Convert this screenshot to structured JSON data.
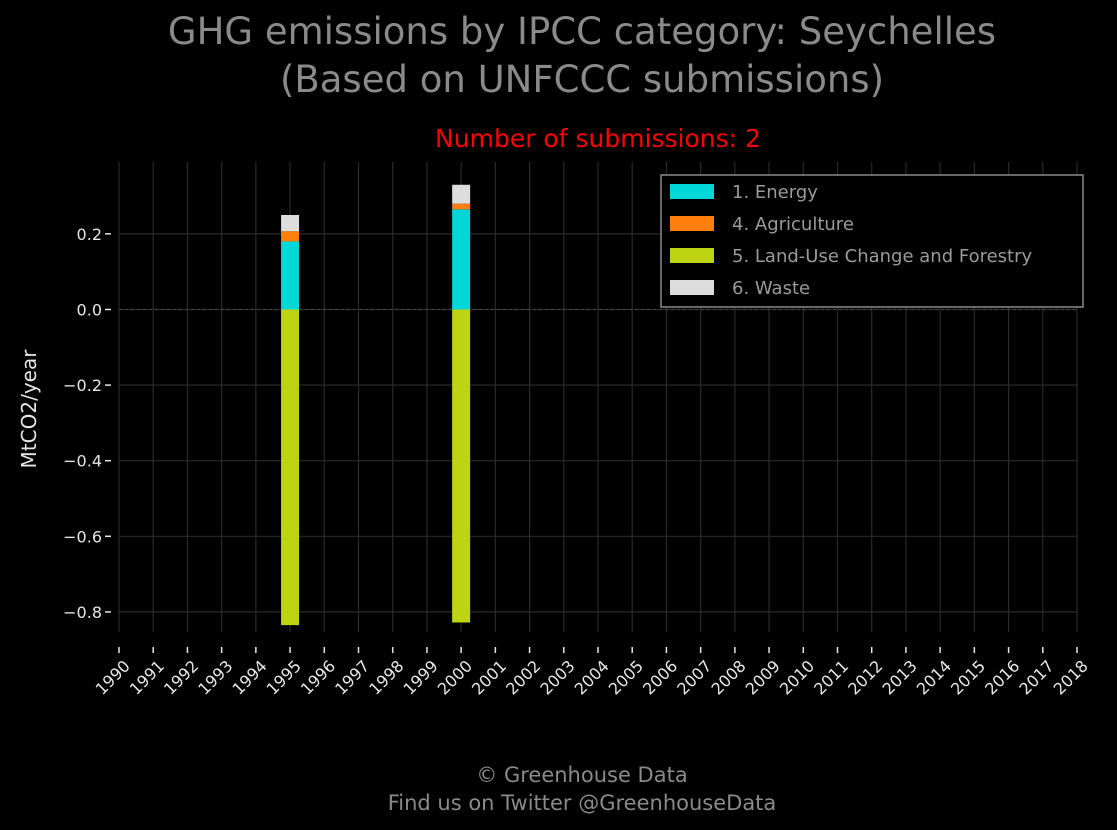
{
  "title_line1": "GHG emissions by IPCC category: Seychelles",
  "title_line2": "(Based on UNFCCC submissions)",
  "subtitle": "Number of submissions: 2",
  "footer_line1": "© Greenhouse Data",
  "footer_line2": "Find us on Twitter @GreenhouseData",
  "colors": {
    "background": "#000000",
    "grid": "#2a2a2a",
    "title": "#8a8a8a",
    "subtitle": "#ff0000",
    "axis_text": "#e6e6e6",
    "footer": "#8a8a8a"
  },
  "chart_data": {
    "type": "bar",
    "stacked": true,
    "ylabel": "MtCO2/year",
    "ylim": [
      -0.9,
      0.37
    ],
    "y_ticks": [
      0.2,
      0.0,
      -0.2,
      -0.4,
      -0.6,
      -0.8
    ],
    "y_tick_labels": [
      "0.2",
      "0.0",
      "−0.2",
      "−0.4",
      "−0.6",
      "−0.8"
    ],
    "grid": true,
    "legend_position": "top-right",
    "categories": [
      "1990",
      "1991",
      "1992",
      "1993",
      "1994",
      "1995",
      "1996",
      "1997",
      "1998",
      "1999",
      "2000",
      "2001",
      "2002",
      "2003",
      "2004",
      "2005",
      "2006",
      "2007",
      "2008",
      "2009",
      "2010",
      "2011",
      "2012",
      "2013",
      "2014",
      "2015",
      "2016",
      "2017",
      "2018"
    ],
    "series": [
      {
        "name": "1. Energy",
        "color": "#00d7d7",
        "values": [
          0,
          0,
          0,
          0,
          0,
          0.18,
          0,
          0,
          0,
          0,
          0.265,
          0,
          0,
          0,
          0,
          0,
          0,
          0,
          0,
          0,
          0,
          0,
          0,
          0,
          0,
          0,
          0,
          0,
          0
        ]
      },
      {
        "name": "4. Agriculture",
        "color": "#ff7f0e",
        "values": [
          0,
          0,
          0,
          0,
          0,
          0.027,
          0,
          0,
          0,
          0,
          0.015,
          0,
          0,
          0,
          0,
          0,
          0,
          0,
          0,
          0,
          0,
          0,
          0,
          0,
          0,
          0,
          0,
          0,
          0
        ]
      },
      {
        "name": "5. Land-Use Change and Forestry",
        "color": "#bcd414",
        "values": [
          0,
          0,
          0,
          0,
          0,
          -0.835,
          0,
          0,
          0,
          0,
          -0.828,
          0,
          0,
          0,
          0,
          0,
          0,
          0,
          0,
          0,
          0,
          0,
          0,
          0,
          0,
          0,
          0,
          0,
          0
        ]
      },
      {
        "name": "6. Waste",
        "color": "#dddddd",
        "values": [
          0,
          0,
          0,
          0,
          0,
          0.043,
          0,
          0,
          0,
          0,
          0.05,
          0,
          0,
          0,
          0,
          0,
          0,
          0,
          0,
          0,
          0,
          0,
          0,
          0,
          0,
          0,
          0,
          0,
          0
        ]
      }
    ]
  }
}
